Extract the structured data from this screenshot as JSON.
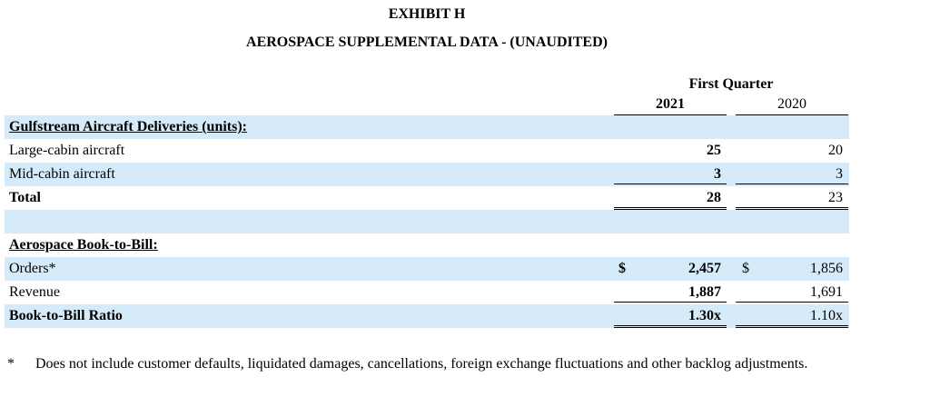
{
  "header": {
    "exhibit": "EXHIBIT H",
    "title": "AEROSPACE SUPPLEMENTAL DATA - (UNAUDITED)",
    "period": "First Quarter",
    "col1": "2021",
    "col2": "2020"
  },
  "deliveries": {
    "heading": "Gulfstream Aircraft Deliveries (units):",
    "large": {
      "label": "Large-cabin aircraft",
      "v2021": "25",
      "v2020": "20"
    },
    "mid": {
      "label": "Mid-cabin aircraft",
      "v2021": "3",
      "v2020": "3"
    },
    "total": {
      "label": "Total",
      "v2021": "28",
      "v2020": "23"
    }
  },
  "book_to_bill": {
    "heading": "Aerospace Book-to-Bill:",
    "orders": {
      "label": "Orders*",
      "cur": "$",
      "v2021": "2,457",
      "v2020": "1,856"
    },
    "revenue": {
      "label": "Revenue",
      "v2021": "1,887",
      "v2020": "1,691"
    },
    "ratio": {
      "label": "Book-to-Bill Ratio",
      "v2021": "1.30x",
      "v2020": "1.10x"
    }
  },
  "footnote": {
    "mark": "*",
    "text": "Does not include customer defaults, liquidated damages, cancellations, foreign exchange fluctuations and other backlog adjustments."
  }
}
